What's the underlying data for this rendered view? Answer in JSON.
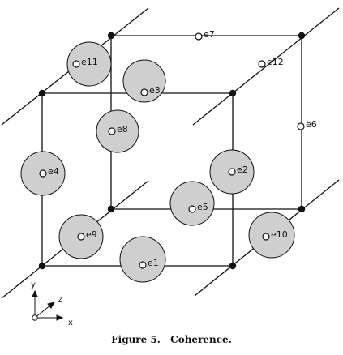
{
  "caption": {
    "figure": "Figure 5.",
    "title": "Coherence."
  },
  "axes": {
    "x": "x",
    "y": "y",
    "z": "z"
  },
  "edges": [
    {
      "label": "e1",
      "shaded": true
    },
    {
      "label": "e2",
      "shaded": true
    },
    {
      "label": "e3",
      "shaded": true
    },
    {
      "label": "e4",
      "shaded": true
    },
    {
      "label": "e5",
      "shaded": true
    },
    {
      "label": "e6",
      "shaded": false
    },
    {
      "label": "e7",
      "shaded": false
    },
    {
      "label": "e8",
      "shaded": true
    },
    {
      "label": "e9",
      "shaded": true
    },
    {
      "label": "e10",
      "shaded": true
    },
    {
      "label": "e11",
      "shaded": true
    },
    {
      "label": "e12",
      "shaded": false
    }
  ],
  "colors": {
    "shade": "#cfcfcf",
    "line": "#111111",
    "background": "#ffffff"
  }
}
